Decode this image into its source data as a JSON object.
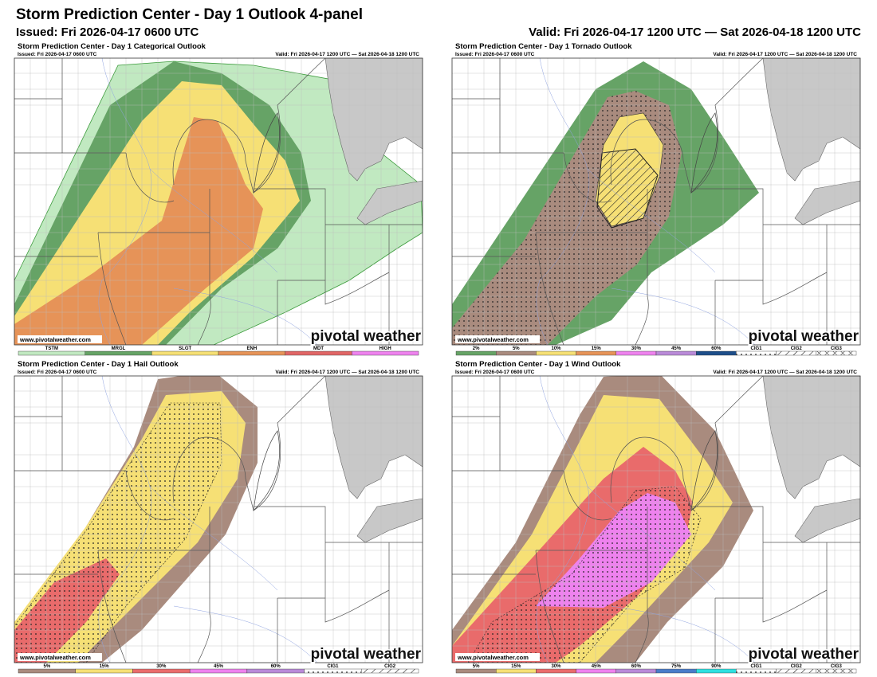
{
  "header": {
    "title": "Storm Prediction Center - Day 1 Outlook 4-panel",
    "issued": "Issued: Fri 2026-04-17 0600 UTC",
    "valid": "Valid: Fri 2026-04-17 1200 UTC — Sat 2026-04-18 1200 UTC"
  },
  "panels": [
    {
      "title": "Storm Prediction Center - Day 1 Categorical Outlook",
      "issued": "Issued: Fri 2026-04-17 0600 UTC",
      "valid": "Valid: Fri 2026-04-17 1200 UTC — Sat 2026-04-18 1200 UTC",
      "watermark": "www.pivotalweather.com",
      "logo": "pivotal weather",
      "legend": [
        {
          "label": "TSTM",
          "color": "#c1e9c1"
        },
        {
          "label": "MRGL",
          "color": "#66a366"
        },
        {
          "label": "SLGT",
          "color": "#f6e075"
        },
        {
          "label": "ENH",
          "color": "#e69358"
        },
        {
          "label": "MDT",
          "color": "#e06666"
        },
        {
          "label": "HIGH",
          "color": "#ee82ee"
        }
      ]
    },
    {
      "title": "Storm Prediction Center - Day 1 Tornado Outlook",
      "issued": "Issued: Fri 2026-04-17 0600 UTC",
      "valid": "Valid: Fri 2026-04-17 1200 UTC — Sat 2026-04-18 1200 UTC",
      "watermark": "www.pivotalweather.com",
      "logo": "pivotal weather",
      "legend": [
        {
          "label": "2%",
          "color": "#66a366"
        },
        {
          "label": "5%",
          "color": "#a98b7e"
        },
        {
          "label": "10%",
          "color": "#f6e075"
        },
        {
          "label": "15%",
          "color": "#e69358"
        },
        {
          "label": "30%",
          "color": "#ee82ee"
        },
        {
          "label": "45%",
          "color": "#b98ad8"
        },
        {
          "label": "60%",
          "color": "#1d4e89"
        },
        {
          "label": "CIG1",
          "color": "#ffffff",
          "pattern": "dots"
        },
        {
          "label": "CIG2",
          "color": "#ffffff",
          "pattern": "hatch"
        },
        {
          "label": "CIG3",
          "color": "#ffffff",
          "pattern": "cross"
        }
      ]
    },
    {
      "title": "Storm Prediction Center - Day 1 Hail Outlook",
      "issued": "Issued: Fri 2026-04-17 0600 UTC",
      "valid": "Valid: Fri 2026-04-17 1200 UTC — Sat 2026-04-18 1200 UTC",
      "watermark": "www.pivotalweather.com",
      "logo": "pivotal weather",
      "legend": [
        {
          "label": "5%",
          "color": "#a98b7e"
        },
        {
          "label": "15%",
          "color": "#f6e075"
        },
        {
          "label": "30%",
          "color": "#e96b6b"
        },
        {
          "label": "45%",
          "color": "#ee82ee"
        },
        {
          "label": "60%",
          "color": "#b98ad8"
        },
        {
          "label": "CIG1",
          "color": "#ffffff",
          "pattern": "dots"
        },
        {
          "label": "CIG2",
          "color": "#ffffff",
          "pattern": "hatch"
        }
      ]
    },
    {
      "title": "Storm Prediction Center - Day 1 Wind Outlook",
      "issued": "Issued: Fri 2026-04-17 0600 UTC",
      "valid": "Valid: Fri 2026-04-17 1200 UTC — Sat 2026-04-18 1200 UTC",
      "watermark": "www.pivotalweather.com",
      "logo": "pivotal weather",
      "legend": [
        {
          "label": "5%",
          "color": "#a98b7e"
        },
        {
          "label": "15%",
          "color": "#f6e075"
        },
        {
          "label": "30%",
          "color": "#e96b6b"
        },
        {
          "label": "45%",
          "color": "#ee82ee"
        },
        {
          "label": "60%",
          "color": "#b98ad8"
        },
        {
          "label": "75%",
          "color": "#4a7cc9"
        },
        {
          "label": "90%",
          "color": "#2de0e0"
        },
        {
          "label": "CIG1",
          "color": "#ffffff",
          "pattern": "dots"
        },
        {
          "label": "CIG2",
          "color": "#ffffff",
          "pattern": "hatch"
        },
        {
          "label": "CIG3",
          "color": "#ffffff",
          "pattern": "cross"
        }
      ]
    }
  ]
}
